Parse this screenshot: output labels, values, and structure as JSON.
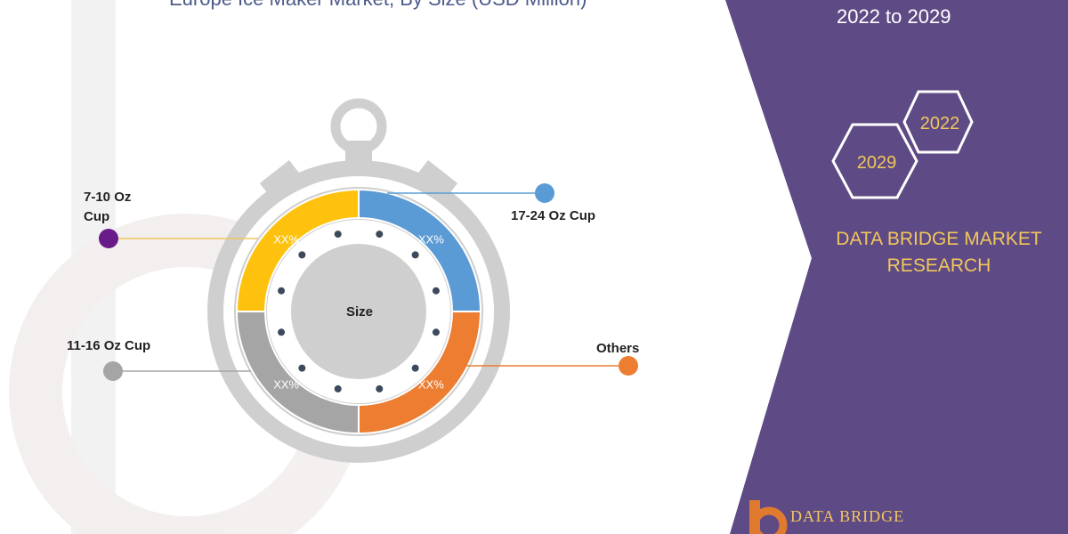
{
  "title": "Europe Ice Maker Market, By Size (USD Million)",
  "period": "2022 to 2029",
  "brand_lines": [
    "DATA BRIDGE MARKET",
    "RESEARCH"
  ],
  "hex_years": [
    "2022",
    "2029"
  ],
  "logo_text": "DATA BRIDGE",
  "center_label": "Size",
  "colors": {
    "purple_panel": "#5e4a85",
    "gold": "#f2c75c",
    "yellow": "#fec20e",
    "blue": "#5b9bd5",
    "orange": "#ed7d31",
    "gray": "#a5a5a5",
    "dark_purple": "#6a1b8a"
  },
  "chart_data": {
    "type": "pie",
    "title": "Europe Ice Maker Market, By Size (USD Million)",
    "center_label": "Size",
    "slices": [
      {
        "name": "17-24 Oz Cup",
        "value_label": "XX%",
        "color": "#5b9bd5"
      },
      {
        "name": "Others",
        "value_label": "XX%",
        "color": "#ed7d31"
      },
      {
        "name": "11-16 Oz Cup",
        "value_label": "XX%",
        "color": "#a5a5a5"
      },
      {
        "name": "7-10 Oz Cup",
        "value_label": "XX%",
        "color": "#fec20e"
      }
    ],
    "legend": [
      {
        "name": "7-10 Oz Cup",
        "color": "#6a1b8a"
      },
      {
        "name": "17-24 Oz Cup",
        "color": "#5b9bd5"
      },
      {
        "name": "11-16 Oz Cup",
        "color": "#a5a5a5"
      },
      {
        "name": "Others",
        "color": "#ed7d31"
      }
    ]
  }
}
